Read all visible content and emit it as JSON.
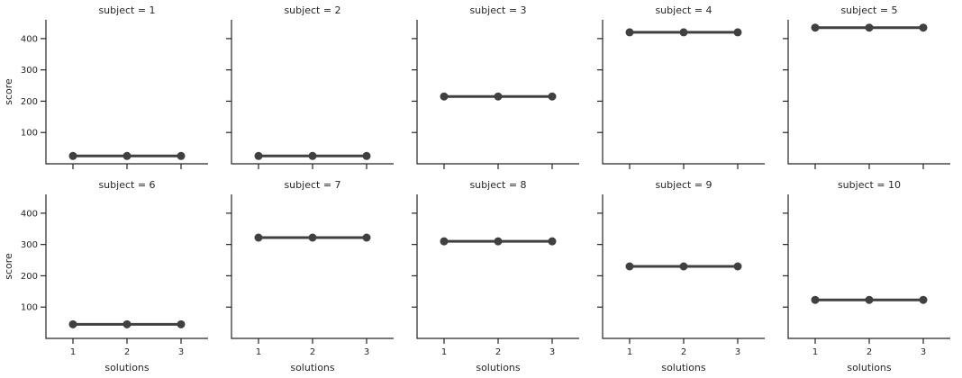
{
  "chart_data": {
    "type": "line",
    "facet_grid": {
      "rows": 2,
      "cols": 5,
      "facet_variable": "subject"
    },
    "x_categories": [
      "1",
      "2",
      "3"
    ],
    "xlabel": "solutions",
    "ylabel": "score",
    "yticks": [
      100,
      200,
      300,
      400
    ],
    "ylim": [
      0,
      460
    ],
    "grid": false,
    "legend": "none",
    "facets": [
      {
        "title": "subject = 1",
        "subject": "1",
        "scores": [
          25,
          25,
          25
        ]
      },
      {
        "title": "subject = 2",
        "subject": "2",
        "scores": [
          25,
          25,
          25
        ]
      },
      {
        "title": "subject = 3",
        "subject": "3",
        "scores": [
          215,
          215,
          215
        ]
      },
      {
        "title": "subject = 4",
        "subject": "4",
        "scores": [
          420,
          420,
          420
        ]
      },
      {
        "title": "subject = 5",
        "subject": "5",
        "scores": [
          435,
          435,
          435
        ]
      },
      {
        "title": "subject = 6",
        "subject": "6",
        "scores": [
          45,
          45,
          45
        ]
      },
      {
        "title": "subject = 7",
        "subject": "7",
        "scores": [
          322,
          322,
          322
        ]
      },
      {
        "title": "subject = 8",
        "subject": "8",
        "scores": [
          310,
          310,
          310
        ]
      },
      {
        "title": "subject = 9",
        "subject": "9",
        "scores": [
          230,
          230,
          230
        ]
      },
      {
        "title": "subject = 10",
        "subject": "10",
        "scores": [
          123,
          123,
          123
        ]
      }
    ],
    "colors": {
      "point_line": "#404040",
      "axis": "#262626",
      "text": "#262626",
      "background": "#ffffff"
    }
  }
}
